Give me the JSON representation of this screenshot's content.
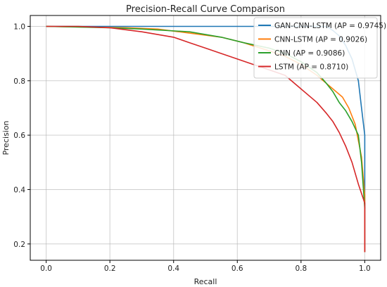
{
  "chart_data": {
    "type": "line",
    "title": "Precision-Recall Curve Comparison",
    "xlabel": "Recall",
    "ylabel": "Precision",
    "xlim": [
      -0.05,
      1.05
    ],
    "ylim": [
      0.14,
      1.04
    ],
    "xticks": [
      "0.0",
      "0.2",
      "0.4",
      "0.6",
      "0.8",
      "1.0"
    ],
    "yticks": [
      "0.2",
      "0.4",
      "0.6",
      "0.8",
      "1.0"
    ],
    "grid": true,
    "legend_position": "upper-right",
    "series": [
      {
        "name": "GAN-CNN-LSTM (AP = 0.9745)",
        "color": "#1f77b4",
        "x": [
          0.0,
          0.2,
          0.6,
          0.88,
          0.9,
          0.92,
          0.94,
          0.96,
          0.97,
          0.98,
          0.99,
          1.0,
          1.0,
          1.0,
          1.0
        ],
        "y": [
          1.0,
          1.0,
          1.0,
          1.0,
          0.985,
          0.965,
          0.93,
          0.88,
          0.84,
          0.8,
          0.7,
          0.6,
          0.45,
          0.35,
          0.17
        ]
      },
      {
        "name": "CNN-LSTM (AP = 0.9026)",
        "color": "#ff7f0e",
        "x": [
          0.0,
          0.25,
          0.35,
          0.45,
          0.55,
          0.62,
          0.7,
          0.75,
          0.8,
          0.85,
          0.88,
          0.9,
          0.93,
          0.95,
          0.97,
          0.99,
          1.0,
          1.0
        ],
        "y": [
          1.0,
          0.995,
          0.99,
          0.975,
          0.96,
          0.94,
          0.91,
          0.89,
          0.86,
          0.82,
          0.79,
          0.77,
          0.74,
          0.7,
          0.64,
          0.52,
          0.38,
          0.17
        ]
      },
      {
        "name": "CNN (AP = 0.9086)",
        "color": "#2ca02c",
        "x": [
          0.0,
          0.2,
          0.3,
          0.45,
          0.55,
          0.62,
          0.7,
          0.75,
          0.8,
          0.85,
          0.88,
          0.9,
          0.92,
          0.94,
          0.96,
          0.98,
          0.99,
          1.0
        ],
        "y": [
          1.0,
          0.995,
          0.99,
          0.98,
          0.96,
          0.94,
          0.92,
          0.9,
          0.87,
          0.83,
          0.79,
          0.76,
          0.72,
          0.69,
          0.65,
          0.6,
          0.5,
          0.33
        ]
      },
      {
        "name": "LSTM (AP = 0.8710)",
        "color": "#d62728",
        "x": [
          0.0,
          0.1,
          0.2,
          0.3,
          0.4,
          0.45,
          0.5,
          0.55,
          0.6,
          0.65,
          0.7,
          0.75,
          0.8,
          0.85,
          0.88,
          0.9,
          0.92,
          0.94,
          0.96,
          0.98,
          1.0,
          1.0
        ],
        "y": [
          1.0,
          1.0,
          0.995,
          0.98,
          0.96,
          0.94,
          0.92,
          0.9,
          0.88,
          0.86,
          0.84,
          0.82,
          0.77,
          0.72,
          0.68,
          0.65,
          0.61,
          0.56,
          0.5,
          0.42,
          0.35,
          0.17
        ]
      }
    ]
  }
}
